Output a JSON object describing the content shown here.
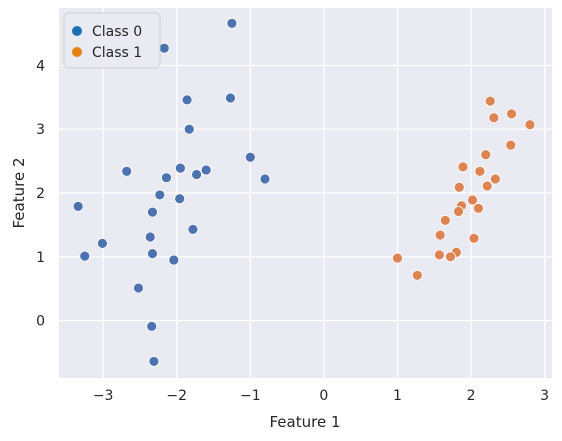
{
  "chart_data": {
    "type": "scatter",
    "xlabel": "Feature 1",
    "ylabel": "Feature 2",
    "xlim": [
      -3.6,
      3.1
    ],
    "ylim": [
      -0.9,
      4.9
    ],
    "x_ticks": [
      -3,
      -2,
      -1,
      0,
      1,
      2,
      3
    ],
    "x_tick_labels": [
      "−3",
      "−2",
      "−1",
      "0",
      "1",
      "2",
      "3"
    ],
    "y_ticks": [
      0,
      1,
      2,
      3,
      4
    ],
    "y_tick_labels": [
      "0",
      "1",
      "2",
      "3",
      "4"
    ],
    "grid": true,
    "legend_position": "top-left",
    "series": [
      {
        "name": "Class 0",
        "color": "#4c72b0",
        "legend_color": "#1f6fb4",
        "points": [
          [
            -1.25,
            4.66
          ],
          [
            -2.17,
            4.27
          ],
          [
            -1.27,
            3.49
          ],
          [
            -1.86,
            3.46
          ],
          [
            -1.83,
            3.0
          ],
          [
            -1.0,
            2.56
          ],
          [
            -2.68,
            2.34
          ],
          [
            -1.95,
            2.39
          ],
          [
            -1.6,
            2.36
          ],
          [
            -1.73,
            2.29
          ],
          [
            -2.14,
            2.24
          ],
          [
            -0.8,
            2.22
          ],
          [
            -2.23,
            1.97
          ],
          [
            -1.96,
            1.91
          ],
          [
            -3.34,
            1.79
          ],
          [
            -2.33,
            1.7
          ],
          [
            -1.78,
            1.43
          ],
          [
            -2.36,
            1.31
          ],
          [
            -3.01,
            1.21
          ],
          [
            -2.33,
            1.05
          ],
          [
            -3.25,
            1.01
          ],
          [
            -2.04,
            0.95
          ],
          [
            -2.52,
            0.51
          ],
          [
            -2.34,
            -0.09
          ],
          [
            -2.31,
            -0.64
          ]
        ]
      },
      {
        "name": "Class 1",
        "color": "#dd8452",
        "legend_color": "#e6820e",
        "points": [
          [
            2.26,
            3.44
          ],
          [
            2.55,
            3.24
          ],
          [
            2.31,
            3.18
          ],
          [
            2.8,
            3.07
          ],
          [
            2.54,
            2.75
          ],
          [
            2.2,
            2.6
          ],
          [
            1.89,
            2.41
          ],
          [
            2.12,
            2.34
          ],
          [
            2.33,
            2.22
          ],
          [
            1.84,
            2.09
          ],
          [
            2.22,
            2.11
          ],
          [
            2.02,
            1.89
          ],
          [
            1.87,
            1.8
          ],
          [
            2.1,
            1.76
          ],
          [
            1.83,
            1.71
          ],
          [
            1.65,
            1.57
          ],
          [
            1.58,
            1.34
          ],
          [
            2.04,
            1.29
          ],
          [
            1.8,
            1.07
          ],
          [
            1.57,
            1.03
          ],
          [
            1.72,
            1.0
          ],
          [
            1.0,
            0.98
          ],
          [
            1.27,
            0.71
          ]
        ]
      }
    ]
  }
}
